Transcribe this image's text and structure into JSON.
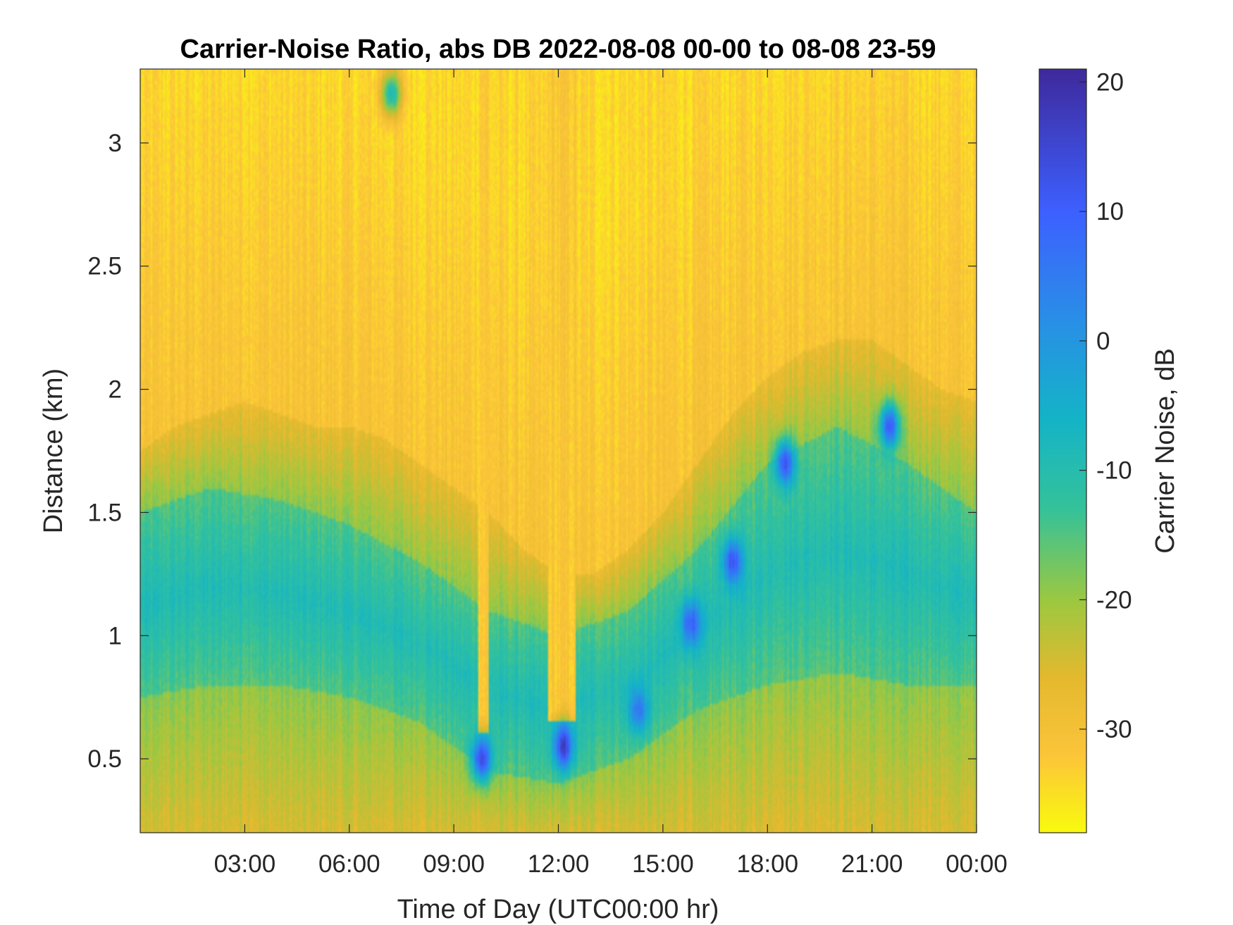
{
  "chart_data": {
    "type": "heatmap",
    "title": "Carrier-Noise Ratio, abs DB 2022-08-08 00-00 to 08-08 23-59",
    "xlabel": "Time of Day (UTC00:00 hr)",
    "ylabel": "Distance (km)",
    "colorbar_label": "Carrier Noise, dB",
    "xlim_hours": [
      0,
      24
    ],
    "ylim_km": [
      0.2,
      3.3
    ],
    "clim_db": [
      -38,
      21
    ],
    "x_ticks": [
      {
        "hour": 3,
        "label": "03:00"
      },
      {
        "hour": 6,
        "label": "06:00"
      },
      {
        "hour": 9,
        "label": "09:00"
      },
      {
        "hour": 12,
        "label": "12:00"
      },
      {
        "hour": 15,
        "label": "15:00"
      },
      {
        "hour": 18,
        "label": "18:00"
      },
      {
        "hour": 21,
        "label": "21:00"
      },
      {
        "hour": 24,
        "label": "00:00"
      }
    ],
    "y_ticks": [
      {
        "km": 0.5,
        "label": "0.5"
      },
      {
        "km": 1,
        "label": "1"
      },
      {
        "km": 1.5,
        "label": "1.5"
      },
      {
        "km": 2,
        "label": "2"
      },
      {
        "km": 2.5,
        "label": "2.5"
      },
      {
        "km": 3,
        "label": "3"
      }
    ],
    "colorbar_ticks": [
      {
        "db": 20,
        "label": "20"
      },
      {
        "db": 10,
        "label": "10"
      },
      {
        "db": 0,
        "label": "0"
      },
      {
        "db": -10,
        "label": "-10"
      },
      {
        "db": -20,
        "label": "-20"
      },
      {
        "db": -30,
        "label": "-30"
      }
    ],
    "colormap": "parula_reversed",
    "colormap_stops": [
      {
        "db": -38,
        "color": "#f9fb0e"
      },
      {
        "db": -32,
        "color": "#fcc53a"
      },
      {
        "db": -26,
        "color": "#e4b92e"
      },
      {
        "db": -20,
        "color": "#9cc841"
      },
      {
        "db": -13,
        "color": "#35c29a"
      },
      {
        "db": -6,
        "color": "#14b4c8"
      },
      {
        "db": 2,
        "color": "#2a8de8"
      },
      {
        "db": 10,
        "color": "#3d60ff"
      },
      {
        "db": 21,
        "color": "#3e2a9c"
      }
    ],
    "signal_layer_top_km": [
      {
        "hour": 0.0,
        "km": 1.75
      },
      {
        "hour": 1.0,
        "km": 1.85
      },
      {
        "hour": 2.0,
        "km": 1.9
      },
      {
        "hour": 3.0,
        "km": 1.95
      },
      {
        "hour": 4.0,
        "km": 1.9
      },
      {
        "hour": 5.0,
        "km": 1.85
      },
      {
        "hour": 6.0,
        "km": 1.85
      },
      {
        "hour": 7.0,
        "km": 1.8
      },
      {
        "hour": 8.0,
        "km": 1.7
      },
      {
        "hour": 9.0,
        "km": 1.6
      },
      {
        "hour": 10.0,
        "km": 1.5
      },
      {
        "hour": 11.0,
        "km": 1.35
      },
      {
        "hour": 12.0,
        "km": 1.25
      },
      {
        "hour": 13.0,
        "km": 1.25
      },
      {
        "hour": 14.0,
        "km": 1.35
      },
      {
        "hour": 15.0,
        "km": 1.5
      },
      {
        "hour": 16.0,
        "km": 1.7
      },
      {
        "hour": 17.0,
        "km": 1.9
      },
      {
        "hour": 18.0,
        "km": 2.05
      },
      {
        "hour": 19.0,
        "km": 2.15
      },
      {
        "hour": 20.0,
        "km": 2.2
      },
      {
        "hour": 21.0,
        "km": 2.2
      },
      {
        "hour": 22.0,
        "km": 2.1
      },
      {
        "hour": 23.0,
        "km": 2.0
      },
      {
        "hour": 24.0,
        "km": 1.95
      }
    ],
    "strong_return_layer_km": [
      {
        "hour": 0.0,
        "low": 0.75,
        "high": 1.5
      },
      {
        "hour": 2.0,
        "low": 0.8,
        "high": 1.6
      },
      {
        "hour": 4.0,
        "low": 0.8,
        "high": 1.55
      },
      {
        "hour": 6.0,
        "low": 0.75,
        "high": 1.45
      },
      {
        "hour": 8.0,
        "low": 0.65,
        "high": 1.3
      },
      {
        "hour": 10.0,
        "low": 0.45,
        "high": 1.1
      },
      {
        "hour": 12.0,
        "low": 0.4,
        "high": 1.0
      },
      {
        "hour": 14.0,
        "low": 0.5,
        "high": 1.1
      },
      {
        "hour": 16.0,
        "low": 0.7,
        "high": 1.35
      },
      {
        "hour": 18.0,
        "low": 0.8,
        "high": 1.7
      },
      {
        "hour": 20.0,
        "low": 0.85,
        "high": 1.85
      },
      {
        "hour": 22.0,
        "low": 0.8,
        "high": 1.7
      },
      {
        "hour": 24.0,
        "low": 0.8,
        "high": 1.5
      }
    ],
    "low_signal_columns": [
      {
        "start_hour": 9.7,
        "end_hour": 10.0,
        "down_to_km": 0.6
      },
      {
        "start_hour": 11.7,
        "end_hour": 12.5,
        "down_to_km": 0.65
      }
    ],
    "strong_spots": [
      {
        "hour": 9.8,
        "km": 0.5,
        "db": 14
      },
      {
        "hour": 12.15,
        "km": 0.55,
        "db": 16
      },
      {
        "hour": 14.3,
        "km": 0.7,
        "db": 6
      },
      {
        "hour": 15.8,
        "km": 1.05,
        "db": 10
      },
      {
        "hour": 17.0,
        "km": 1.3,
        "db": 12
      },
      {
        "hour": 18.5,
        "km": 1.7,
        "db": 12
      },
      {
        "hour": 21.5,
        "km": 1.85,
        "db": 10
      },
      {
        "hour": 7.2,
        "km": 3.2,
        "db": -8
      }
    ]
  }
}
